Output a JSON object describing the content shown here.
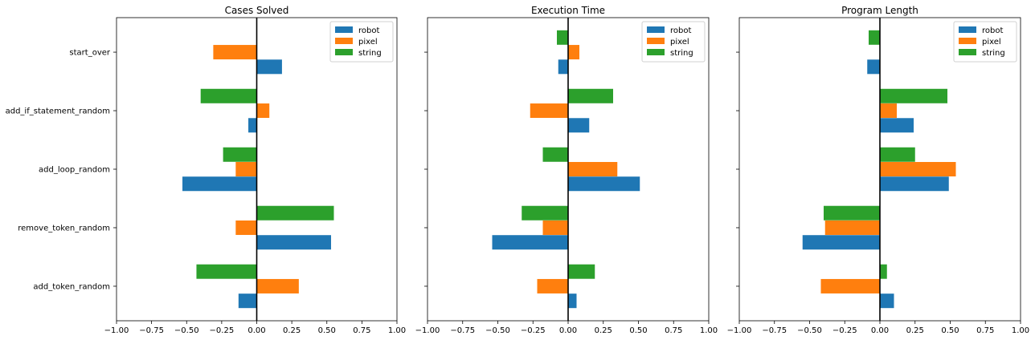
{
  "chart_data": {
    "type": "bar",
    "orientation": "horizontal",
    "categories": [
      "add_token_random",
      "remove_token_random",
      "add_loop_random",
      "add_if_statement_random",
      "start_over"
    ],
    "xlim": [
      -1.0,
      1.0
    ],
    "xticks": [
      "−1.00",
      "−0.75",
      "−0.50",
      "−0.25",
      "0.00",
      "0.25",
      "0.50",
      "0.75",
      "1.00"
    ],
    "legend_placement": "upper-right",
    "grid": false,
    "colors": {
      "robot": "#1f77b4",
      "pixel": "#ff7f0e",
      "string": "#2ca02c"
    },
    "panels": [
      {
        "title": "Cases Solved",
        "legend": [
          "robot",
          "pixel",
          "string"
        ],
        "series": [
          {
            "name": "robot",
            "values": [
              -0.13,
              0.53,
              -0.53,
              -0.06,
              0.18
            ]
          },
          {
            "name": "pixel",
            "values": [
              0.3,
              -0.15,
              -0.15,
              0.09,
              -0.31
            ]
          },
          {
            "name": "string",
            "values": [
              -0.43,
              0.55,
              -0.24,
              -0.4,
              0.0
            ]
          }
        ]
      },
      {
        "title": "Execution Time",
        "legend": [
          "robot",
          "pixel",
          "string"
        ],
        "series": [
          {
            "name": "robot",
            "values": [
              0.06,
              -0.54,
              0.51,
              0.15,
              -0.07
            ]
          },
          {
            "name": "pixel",
            "values": [
              -0.22,
              -0.18,
              0.35,
              -0.27,
              0.08
            ]
          },
          {
            "name": "string",
            "values": [
              0.19,
              -0.33,
              -0.18,
              0.32,
              -0.08
            ]
          }
        ]
      },
      {
        "title": "Program Length",
        "legend": [
          "robot",
          "pixel",
          "string"
        ],
        "series": [
          {
            "name": "robot",
            "values": [
              0.1,
              -0.55,
              0.49,
              0.24,
              -0.09
            ]
          },
          {
            "name": "pixel",
            "values": [
              -0.42,
              -0.39,
              0.54,
              0.12,
              0.0
            ]
          },
          {
            "name": "string",
            "values": [
              0.05,
              -0.4,
              0.25,
              0.48,
              -0.08
            ]
          }
        ]
      }
    ]
  }
}
